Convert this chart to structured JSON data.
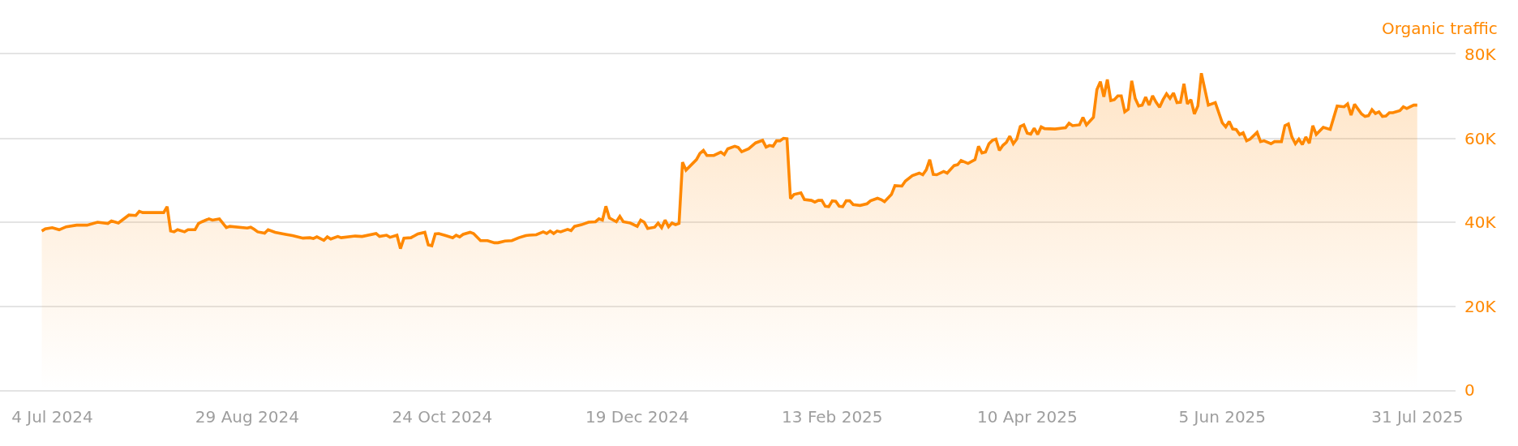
{
  "chart_data": {
    "type": "area",
    "ylabel": "Organic traffic",
    "x": [
      "2024-07-01",
      "2024-07-02",
      "2024-07-04",
      "2024-07-06",
      "2024-07-08",
      "2024-07-11",
      "2024-07-14",
      "2024-07-17",
      "2024-07-20",
      "2024-07-21",
      "2024-07-23",
      "2024-07-26",
      "2024-07-28",
      "2024-07-29",
      "2024-07-30",
      "2024-08-03",
      "2024-08-05",
      "2024-08-06",
      "2024-08-07",
      "2024-08-08",
      "2024-08-09",
      "2024-08-11",
      "2024-08-12",
      "2024-08-14",
      "2024-08-15",
      "2024-08-16",
      "2024-08-18",
      "2024-08-19",
      "2024-08-21",
      "2024-08-23",
      "2024-08-24",
      "2024-08-29",
      "2024-08-30",
      "2024-08-31",
      "2024-09-01",
      "2024-09-03",
      "2024-09-04",
      "2024-09-06",
      "2024-09-09",
      "2024-09-11",
      "2024-09-14",
      "2024-09-16",
      "2024-09-17",
      "2024-09-18",
      "2024-09-20",
      "2024-09-21",
      "2024-09-22",
      "2024-09-24",
      "2024-09-25",
      "2024-09-29",
      "2024-10-01",
      "2024-10-05",
      "2024-10-06",
      "2024-10-08",
      "2024-10-09",
      "2024-10-11",
      "2024-10-12",
      "2024-10-13",
      "2024-10-15",
      "2024-10-17",
      "2024-10-19",
      "2024-10-20",
      "2024-10-21",
      "2024-10-22",
      "2024-10-23",
      "2024-10-25",
      "2024-10-27",
      "2024-10-28",
      "2024-10-29",
      "2024-10-30",
      "2024-11-01",
      "2024-11-02",
      "2024-11-04",
      "2024-11-06",
      "2024-11-08",
      "2024-11-09",
      "2024-11-11",
      "2024-11-13",
      "2024-11-15",
      "2024-11-17",
      "2024-11-18",
      "2024-11-20",
      "2024-11-22",
      "2024-11-23",
      "2024-11-24",
      "2024-11-25",
      "2024-11-26",
      "2024-11-27",
      "2024-11-29",
      "2024-11-30",
      "2024-12-01",
      "2024-12-03",
      "2024-12-05",
      "2024-12-07",
      "2024-12-08",
      "2024-12-09",
      "2024-12-10",
      "2024-12-11",
      "2024-12-13",
      "2024-12-14",
      "2024-12-15",
      "2024-12-17",
      "2024-12-19",
      "2024-12-20",
      "2024-12-21",
      "2024-12-22",
      "2024-12-24",
      "2024-12-25",
      "2024-12-26",
      "2024-12-27",
      "2024-12-28",
      "2024-12-29",
      "2024-12-30",
      "2024-12-31",
      "2025-01-01",
      "2025-01-02",
      "2025-01-05",
      "2025-01-06",
      "2025-01-07",
      "2025-01-08",
      "2025-01-10",
      "2025-01-12",
      "2025-01-13",
      "2025-01-14",
      "2025-01-16",
      "2025-01-17",
      "2025-01-18",
      "2025-01-20",
      "2025-01-22",
      "2025-01-24",
      "2025-01-25",
      "2025-01-26",
      "2025-01-27",
      "2025-01-28",
      "2025-01-29",
      "2025-01-30",
      "2025-01-31",
      "2025-02-01",
      "2025-02-02",
      "2025-02-04",
      "2025-02-05",
      "2025-02-07",
      "2025-02-08",
      "2025-02-09",
      "2025-02-10",
      "2025-02-11",
      "2025-02-12",
      "2025-02-13",
      "2025-02-14",
      "2025-02-15",
      "2025-02-16",
      "2025-02-17",
      "2025-02-18",
      "2025-02-19",
      "2025-02-21",
      "2025-02-23",
      "2025-02-24",
      "2025-02-26",
      "2025-02-27",
      "2025-02-28",
      "2025-03-02",
      "2025-03-03",
      "2025-03-05",
      "2025-03-06",
      "2025-03-08",
      "2025-03-10",
      "2025-03-11",
      "2025-03-12",
      "2025-03-13",
      "2025-03-14",
      "2025-03-15",
      "2025-03-17",
      "2025-03-18",
      "2025-03-20",
      "2025-03-21",
      "2025-03-22",
      "2025-03-24",
      "2025-03-26",
      "2025-03-27",
      "2025-03-28",
      "2025-03-29",
      "2025-03-30",
      "2025-03-31",
      "2025-04-01",
      "2025-04-02",
      "2025-04-03",
      "2025-04-04",
      "2025-04-05",
      "2025-04-06",
      "2025-04-07",
      "2025-04-08",
      "2025-04-09",
      "2025-04-10",
      "2025-04-11",
      "2025-04-12",
      "2025-04-13",
      "2025-04-14",
      "2025-04-15",
      "2025-04-18",
      "2025-04-20",
      "2025-04-21",
      "2025-04-22",
      "2025-04-23",
      "2025-04-25",
      "2025-04-26",
      "2025-04-27",
      "2025-04-29",
      "2025-04-30",
      "2025-05-01",
      "2025-05-02",
      "2025-05-03",
      "2025-05-04",
      "2025-05-05",
      "2025-05-06",
      "2025-05-07",
      "2025-05-08",
      "2025-05-09",
      "2025-05-10",
      "2025-05-11",
      "2025-05-12",
      "2025-05-13",
      "2025-05-14",
      "2025-05-15",
      "2025-05-16",
      "2025-05-17",
      "2025-05-18",
      "2025-05-19",
      "2025-05-20",
      "2025-05-21",
      "2025-05-22",
      "2025-05-23",
      "2025-05-24",
      "2025-05-25",
      "2025-05-26",
      "2025-05-27",
      "2025-05-28",
      "2025-05-29",
      "2025-05-30",
      "2025-06-01",
      "2025-06-03",
      "2025-06-05",
      "2025-06-06",
      "2025-06-07",
      "2025-06-08",
      "2025-06-09",
      "2025-06-10",
      "2025-06-11",
      "2025-06-12",
      "2025-06-13",
      "2025-06-15",
      "2025-06-16",
      "2025-06-17",
      "2025-06-19",
      "2025-06-20",
      "2025-06-22",
      "2025-06-23",
      "2025-06-24",
      "2025-06-25",
      "2025-06-26",
      "2025-06-27",
      "2025-06-28",
      "2025-06-29",
      "2025-06-30",
      "2025-07-01",
      "2025-07-02",
      "2025-07-04",
      "2025-07-06",
      "2025-07-08",
      "2025-07-10",
      "2025-07-11",
      "2025-07-12",
      "2025-07-13",
      "2025-07-15",
      "2025-07-16",
      "2025-07-17",
      "2025-07-18",
      "2025-07-19",
      "2025-07-20",
      "2025-07-21",
      "2025-07-22",
      "2025-07-23",
      "2025-07-24",
      "2025-07-26",
      "2025-07-27",
      "2025-07-28",
      "2025-07-29",
      "2025-07-30",
      "2025-07-31"
    ],
    "series": [
      {
        "color": "#ff8800",
        "values": [
          37900,
          38400,
          38700,
          38200,
          38900,
          39300,
          39300,
          40000,
          39700,
          40300,
          39800,
          41700,
          41600,
          42600,
          42300,
          42300,
          42300,
          43700,
          37900,
          37700,
          38200,
          37700,
          38200,
          38200,
          39700,
          40100,
          40800,
          40500,
          40800,
          38700,
          39000,
          38600,
          38800,
          38300,
          37700,
          37400,
          38200,
          37600,
          37100,
          36800,
          36200,
          36300,
          36100,
          36500,
          35700,
          36500,
          36000,
          36600,
          36300,
          36700,
          36600,
          37300,
          36600,
          36900,
          36400,
          36900,
          33700,
          36200,
          36300,
          37200,
          37600,
          34600,
          34400,
          37200,
          37300,
          36800,
          36300,
          36900,
          36500,
          37100,
          37600,
          37300,
          35600,
          35600,
          35100,
          35100,
          35500,
          35600,
          36300,
          36800,
          36900,
          37000,
          37700,
          37300,
          37900,
          37300,
          37900,
          37700,
          38300,
          38000,
          39000,
          39400,
          40000,
          40100,
          40800,
          40500,
          43800,
          41000,
          40100,
          41400,
          40100,
          39800,
          39000,
          40500,
          40000,
          38500,
          38800,
          39800,
          38700,
          40500,
          38900,
          39800,
          39400,
          39700,
          54300,
          52400,
          54900,
          56400,
          57100,
          55900,
          55900,
          56700,
          56100,
          57500,
          58100,
          57800,
          56800,
          57500,
          58900,
          59500,
          57900,
          58300,
          58100,
          59400,
          59400,
          60000,
          59900,
          45600,
          46600,
          47000,
          45400,
          45200,
          44800,
          45200,
          45200,
          43800,
          43700,
          45100,
          45000,
          43800,
          43700,
          45100,
          45100,
          44200,
          44000,
          44400,
          45100,
          45700,
          45400,
          44900,
          46600,
          48700,
          48600,
          49800,
          51100,
          51700,
          51300,
          52500,
          54900,
          51400,
          51300,
          52100,
          51700,
          53500,
          53700,
          54700,
          54000,
          54900,
          58100,
          56500,
          56700,
          58700,
          59500,
          59800,
          57100,
          58300,
          59000,
          60500,
          58700,
          59800,
          62800,
          63200,
          61200,
          61000,
          62400,
          60900,
          62700,
          62300,
          62200,
          62400,
          62500,
          63600,
          63000,
          63200,
          65000,
          63200,
          65000,
          71600,
          73500,
          69900,
          74000,
          69000,
          69200,
          70100,
          70100,
          66300,
          66900,
          73700,
          69500,
          67700,
          67900,
          69800,
          67900,
          70100,
          68600,
          67400,
          69200,
          70600,
          69500,
          70800,
          68500,
          68600,
          73000,
          68200,
          69200,
          65800,
          67700,
          75500,
          67900,
          68500,
          63700,
          62700,
          64000,
          62200,
          62100,
          60900,
          61300,
          59400,
          59800,
          61400,
          59200,
          59400,
          58700,
          59200,
          59200,
          63000,
          63400,
          60300,
          58700,
          59800,
          58500,
          60300,
          58800,
          63000,
          60900,
          62600,
          62100,
          67700,
          67500,
          68200,
          65500,
          68100,
          65800,
          65200,
          65400,
          66800,
          65900,
          66300,
          65200,
          65300,
          66100,
          66100,
          66600,
          67500,
          67100,
          67500,
          67900,
          67900
        ]
      }
    ],
    "xlim": [
      "2024-06-19",
      "2025-08-11"
    ],
    "xticks": [
      {
        "value": "2024-07-04",
        "label": "4 Jul 2024"
      },
      {
        "value": "2024-08-29",
        "label": "29 Aug 2024"
      },
      {
        "value": "2024-10-24",
        "label": "24 Oct 2024"
      },
      {
        "value": "2024-12-19",
        "label": "19 Dec 2024"
      },
      {
        "value": "2025-02-13",
        "label": "13 Feb 2025"
      },
      {
        "value": "2025-04-10",
        "label": "10 Apr 2025"
      },
      {
        "value": "2025-06-05",
        "label": "5 Jun 2025"
      },
      {
        "value": "2025-07-31",
        "label": "31 Jul 2025"
      }
    ],
    "ylim": [
      0,
      80000
    ],
    "yticks": [
      0,
      {
        "value": 20000,
        "label": "20K"
      },
      {
        "value": 40000,
        "label": "40K"
      },
      {
        "value": 60000,
        "label": "60K"
      },
      {
        "value": 80000,
        "label": "80K"
      }
    ],
    "grid": "y"
  }
}
